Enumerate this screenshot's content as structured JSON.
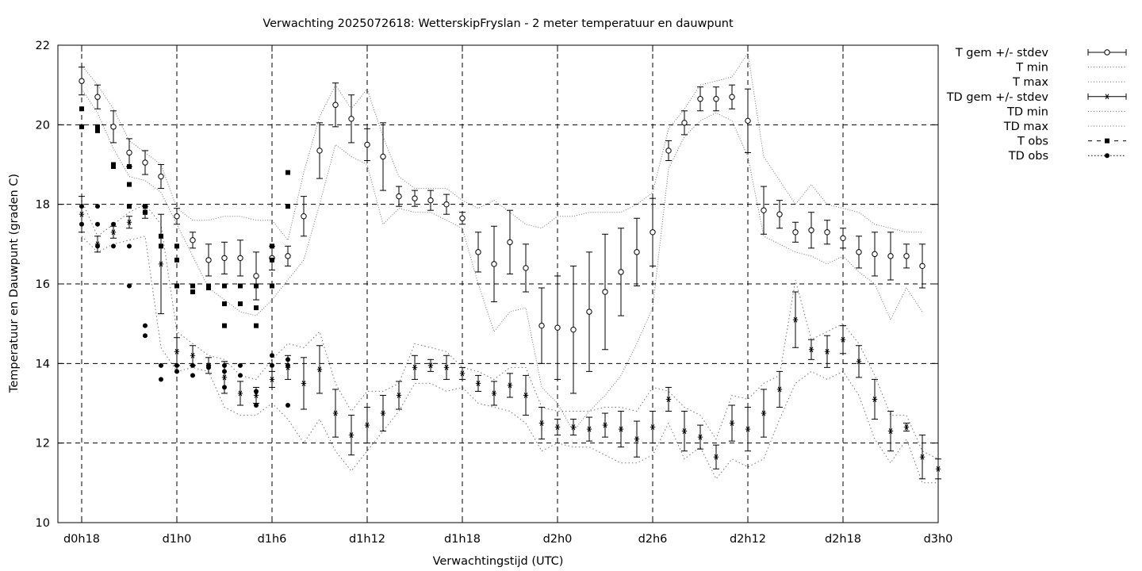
{
  "chart_data": {
    "type": "line",
    "title": "Verwachting 2025072618: WetterskipFryslan - 2 meter temperatuur en dauwpunt",
    "xlabel": "Verwachtingstijd (UTC)",
    "ylabel": "Temperatuur en Dauwpunt (graden C)",
    "ylim": [
      10,
      22
    ],
    "yticks": [
      10,
      12,
      14,
      16,
      18,
      20,
      22
    ],
    "xlim_hours": [
      -1.5,
      54
    ],
    "xticks": [
      {
        "h": 0,
        "label": "d0h18"
      },
      {
        "h": 6,
        "label": "d1h0"
      },
      {
        "h": 12,
        "label": "d1h6"
      },
      {
        "h": 18,
        "label": "d1h12"
      },
      {
        "h": 24,
        "label": "d1h18"
      },
      {
        "h": 30,
        "label": "d2h0"
      },
      {
        "h": 36,
        "label": "d2h6"
      },
      {
        "h": 42,
        "label": "d2h12"
      },
      {
        "h": 48,
        "label": "d2h18"
      },
      {
        "h": 54,
        "label": "d3h0"
      }
    ],
    "grid": true,
    "legend_position": "outside-right",
    "legend": [
      {
        "key": "t_mean",
        "label": "T gem +/- stdev"
      },
      {
        "key": "t_min",
        "label": "T min"
      },
      {
        "key": "t_max",
        "label": "T max"
      },
      {
        "key": "td_mean",
        "label": "TD gem +/- stdev"
      },
      {
        "key": "td_min",
        "label": "TD min"
      },
      {
        "key": "td_max",
        "label": "TD max"
      },
      {
        "key": "t_obs",
        "label": "T obs"
      },
      {
        "key": "td_obs",
        "label": "TD obs"
      }
    ],
    "t_mean": [
      [
        0,
        21.1,
        0.35
      ],
      [
        1,
        20.7,
        0.3
      ],
      [
        2,
        19.95,
        0.4
      ],
      [
        3,
        19.3,
        0.35
      ],
      [
        4,
        19.05,
        0.3
      ],
      [
        5,
        18.7,
        0.3
      ],
      [
        6,
        17.7,
        0.2
      ],
      [
        7,
        17.1,
        0.2
      ],
      [
        8,
        16.6,
        0.4
      ],
      [
        9,
        16.65,
        0.4
      ],
      [
        10,
        16.65,
        0.45
      ],
      [
        11,
        16.2,
        0.6
      ],
      [
        12,
        16.65,
        0.3
      ],
      [
        13,
        16.7,
        0.25
      ],
      [
        14,
        17.7,
        0.5
      ],
      [
        15,
        19.35,
        0.7
      ],
      [
        16,
        20.5,
        0.55
      ],
      [
        17,
        20.15,
        0.6
      ],
      [
        18,
        19.5,
        0.4
      ],
      [
        19,
        19.2,
        0.85
      ],
      [
        20,
        18.2,
        0.25
      ],
      [
        21,
        18.15,
        0.2
      ],
      [
        22,
        18.1,
        0.25
      ],
      [
        23,
        18.0,
        0.25
      ],
      [
        24,
        17.65,
        0.15
      ],
      [
        25,
        16.8,
        0.5
      ],
      [
        26,
        16.5,
        0.95
      ],
      [
        27,
        17.05,
        0.8
      ],
      [
        28,
        16.4,
        0.6
      ],
      [
        29,
        14.95,
        0.95
      ],
      [
        30,
        14.9,
        1.3
      ],
      [
        31,
        14.85,
        1.6
      ],
      [
        32,
        15.3,
        1.5
      ],
      [
        33,
        15.8,
        1.45
      ],
      [
        34,
        16.3,
        1.1
      ],
      [
        35,
        16.8,
        0.85
      ],
      [
        36,
        17.3,
        0.85
      ],
      [
        37,
        19.35,
        0.25
      ],
      [
        38,
        20.05,
        0.3
      ],
      [
        39,
        20.65,
        0.3
      ],
      [
        40,
        20.65,
        0.3
      ],
      [
        41,
        20.7,
        0.3
      ],
      [
        42,
        20.1,
        0.8
      ],
      [
        43,
        17.85,
        0.6
      ],
      [
        44,
        17.75,
        0.35
      ],
      [
        45,
        17.3,
        0.25
      ],
      [
        46,
        17.35,
        0.45
      ],
      [
        47,
        17.3,
        0.3
      ],
      [
        48,
        17.15,
        0.25
      ],
      [
        49,
        16.8,
        0.4
      ],
      [
        50,
        16.75,
        0.55
      ],
      [
        51,
        16.7,
        0.6
      ],
      [
        52,
        16.7,
        0.3
      ],
      [
        53,
        16.45,
        0.55
      ]
    ],
    "t_min": [
      [
        0,
        20.9
      ],
      [
        1,
        20.3
      ],
      [
        2,
        19.4
      ],
      [
        3,
        18.7
      ],
      [
        4,
        18.6
      ],
      [
        5,
        18.3
      ],
      [
        6,
        17.5
      ],
      [
        7,
        16.7
      ],
      [
        8,
        15.9
      ],
      [
        9,
        15.6
      ],
      [
        10,
        15.3
      ],
      [
        11,
        15.2
      ],
      [
        12,
        15.6
      ],
      [
        13,
        16.1
      ],
      [
        14,
        16.6
      ],
      [
        15,
        18.0
      ],
      [
        16,
        19.5
      ],
      [
        17,
        19.2
      ],
      [
        18,
        19.0
      ],
      [
        19,
        17.5
      ],
      [
        20,
        17.9
      ],
      [
        21,
        17.8
      ],
      [
        22,
        17.8
      ],
      [
        23,
        17.6
      ],
      [
        24,
        17.4
      ],
      [
        25,
        16.0
      ],
      [
        26,
        14.8
      ],
      [
        27,
        15.3
      ],
      [
        28,
        15.4
      ],
      [
        29,
        13.4
      ],
      [
        30,
        13.0
      ],
      [
        31,
        12.3
      ],
      [
        32,
        12.8
      ],
      [
        33,
        13.2
      ],
      [
        34,
        13.7
      ],
      [
        35,
        14.5
      ],
      [
        36,
        15.4
      ],
      [
        37,
        18.9
      ],
      [
        38,
        19.7
      ],
      [
        39,
        20.1
      ],
      [
        40,
        20.3
      ],
      [
        41,
        20.1
      ],
      [
        42,
        19.2
      ],
      [
        43,
        17.2
      ],
      [
        44,
        17.0
      ],
      [
        45,
        16.8
      ],
      [
        46,
        16.7
      ],
      [
        47,
        16.5
      ],
      [
        48,
        16.7
      ],
      [
        49,
        16.3
      ],
      [
        50,
        16.0
      ],
      [
        51,
        15.1
      ],
      [
        52,
        15.9
      ],
      [
        53,
        15.3
      ]
    ],
    "t_max": [
      [
        0,
        21.5
      ],
      [
        1,
        21.0
      ],
      [
        2,
        20.4
      ],
      [
        3,
        19.6
      ],
      [
        4,
        19.3
      ],
      [
        5,
        19.0
      ],
      [
        6,
        17.9
      ],
      [
        7,
        17.6
      ],
      [
        8,
        17.6
      ],
      [
        9,
        17.7
      ],
      [
        10,
        17.7
      ],
      [
        11,
        17.6
      ],
      [
        12,
        17.6
      ],
      [
        13,
        17.1
      ],
      [
        14,
        18.8
      ],
      [
        15,
        20.2
      ],
      [
        16,
        21.0
      ],
      [
        17,
        20.4
      ],
      [
        18,
        20.9
      ],
      [
        19,
        19.7
      ],
      [
        20,
        18.7
      ],
      [
        21,
        18.4
      ],
      [
        22,
        18.4
      ],
      [
        23,
        18.4
      ],
      [
        24,
        18.1
      ],
      [
        25,
        17.9
      ],
      [
        26,
        18.1
      ],
      [
        27,
        17.8
      ],
      [
        28,
        17.5
      ],
      [
        29,
        17.4
      ],
      [
        30,
        17.7
      ],
      [
        31,
        17.7
      ],
      [
        32,
        17.8
      ],
      [
        33,
        17.8
      ],
      [
        34,
        17.8
      ],
      [
        35,
        18.0
      ],
      [
        36,
        18.3
      ],
      [
        37,
        19.9
      ],
      [
        38,
        20.4
      ],
      [
        39,
        21.0
      ],
      [
        40,
        21.1
      ],
      [
        41,
        21.2
      ],
      [
        42,
        21.8
      ],
      [
        43,
        19.2
      ],
      [
        44,
        18.6
      ],
      [
        45,
        18.0
      ],
      [
        46,
        18.5
      ],
      [
        47,
        18.0
      ],
      [
        48,
        17.9
      ],
      [
        49,
        17.8
      ],
      [
        50,
        17.5
      ],
      [
        51,
        17.4
      ],
      [
        52,
        17.3
      ],
      [
        53,
        17.3
      ]
    ],
    "td_mean": [
      [
        0,
        17.75,
        0.45
      ],
      [
        1,
        17.0,
        0.2
      ],
      [
        2,
        17.3,
        0.15
      ],
      [
        3,
        17.55,
        0.15
      ],
      [
        4,
        17.8,
        0.15
      ],
      [
        5,
        16.5,
        1.25
      ],
      [
        6,
        14.3,
        0.35
      ],
      [
        7,
        14.2,
        0.25
      ],
      [
        8,
        13.95,
        0.2
      ],
      [
        9,
        13.65,
        0.4
      ],
      [
        10,
        13.25,
        0.3
      ],
      [
        11,
        13.2,
        0.2
      ],
      [
        12,
        13.6,
        0.2
      ],
      [
        13,
        13.9,
        0.3
      ],
      [
        14,
        13.5,
        0.65
      ],
      [
        15,
        13.85,
        0.6
      ],
      [
        16,
        12.75,
        0.6
      ],
      [
        17,
        12.2,
        0.5
      ],
      [
        18,
        12.45,
        0.45
      ],
      [
        19,
        12.75,
        0.45
      ],
      [
        20,
        13.2,
        0.35
      ],
      [
        21,
        13.9,
        0.3
      ],
      [
        22,
        13.95,
        0.15
      ],
      [
        23,
        13.9,
        0.3
      ],
      [
        24,
        13.75,
        0.15
      ],
      [
        25,
        13.5,
        0.2
      ],
      [
        26,
        13.25,
        0.3
      ],
      [
        27,
        13.45,
        0.3
      ],
      [
        28,
        13.2,
        0.5
      ],
      [
        29,
        12.5,
        0.4
      ],
      [
        30,
        12.4,
        0.2
      ],
      [
        31,
        12.4,
        0.2
      ],
      [
        32,
        12.35,
        0.3
      ],
      [
        33,
        12.45,
        0.3
      ],
      [
        34,
        12.35,
        0.45
      ],
      [
        35,
        12.1,
        0.45
      ],
      [
        36,
        12.4,
        0.4
      ],
      [
        37,
        13.1,
        0.3
      ],
      [
        38,
        12.3,
        0.5
      ],
      [
        39,
        12.15,
        0.3
      ],
      [
        40,
        11.65,
        0.3
      ],
      [
        41,
        12.5,
        0.45
      ],
      [
        42,
        12.35,
        0.55
      ],
      [
        43,
        12.75,
        0.6
      ],
      [
        44,
        13.35,
        0.45
      ],
      [
        45,
        15.1,
        0.7
      ],
      [
        46,
        14.35,
        0.25
      ],
      [
        47,
        14.3,
        0.4
      ],
      [
        48,
        14.6,
        0.35
      ],
      [
        49,
        14.05,
        0.4
      ],
      [
        50,
        13.1,
        0.5
      ],
      [
        51,
        12.3,
        0.5
      ],
      [
        52,
        12.4,
        0.1
      ],
      [
        53,
        11.65,
        0.55
      ],
      [
        54,
        11.35,
        0.25
      ]
    ],
    "td_min": [
      [
        0,
        17.2
      ],
      [
        1,
        16.8
      ],
      [
        2,
        17.0
      ],
      [
        3,
        17.1
      ],
      [
        4,
        17.2
      ],
      [
        5,
        14.4
      ],
      [
        6,
        13.8
      ],
      [
        7,
        13.9
      ],
      [
        8,
        13.8
      ],
      [
        9,
        12.9
      ],
      [
        10,
        12.7
      ],
      [
        11,
        12.7
      ],
      [
        12,
        13.0
      ],
      [
        13,
        12.6
      ],
      [
        14,
        12.0
      ],
      [
        15,
        12.6
      ],
      [
        16,
        11.8
      ],
      [
        17,
        11.3
      ],
      [
        18,
        11.8
      ],
      [
        19,
        12.3
      ],
      [
        20,
        12.8
      ],
      [
        21,
        13.5
      ],
      [
        22,
        13.5
      ],
      [
        23,
        13.3
      ],
      [
        24,
        13.4
      ],
      [
        25,
        13.0
      ],
      [
        26,
        12.9
      ],
      [
        27,
        12.8
      ],
      [
        28,
        12.5
      ],
      [
        29,
        11.8
      ],
      [
        30,
        12.0
      ],
      [
        31,
        11.9
      ],
      [
        32,
        11.9
      ],
      [
        33,
        11.7
      ],
      [
        34,
        11.5
      ],
      [
        35,
        11.5
      ],
      [
        36,
        11.7
      ],
      [
        37,
        12.5
      ],
      [
        38,
        11.6
      ],
      [
        39,
        11.9
      ],
      [
        40,
        11.1
      ],
      [
        41,
        11.6
      ],
      [
        42,
        11.4
      ],
      [
        43,
        11.6
      ],
      [
        44,
        12.6
      ],
      [
        45,
        13.5
      ],
      [
        46,
        13.8
      ],
      [
        47,
        13.6
      ],
      [
        48,
        13.8
      ],
      [
        49,
        13.2
      ],
      [
        50,
        12.1
      ],
      [
        51,
        11.5
      ],
      [
        52,
        12.1
      ],
      [
        53,
        11.0
      ],
      [
        54,
        11.0
      ]
    ],
    "td_max": [
      [
        0,
        18.1
      ],
      [
        1,
        17.2
      ],
      [
        2,
        17.5
      ],
      [
        3,
        17.8
      ],
      [
        4,
        18.0
      ],
      [
        5,
        17.5
      ],
      [
        6,
        14.8
      ],
      [
        7,
        14.5
      ],
      [
        8,
        14.2
      ],
      [
        9,
        14.1
      ],
      [
        10,
        13.7
      ],
      [
        11,
        13.6
      ],
      [
        12,
        14.1
      ],
      [
        13,
        14.5
      ],
      [
        14,
        14.4
      ],
      [
        15,
        14.8
      ],
      [
        16,
        13.5
      ],
      [
        17,
        12.8
      ],
      [
        18,
        13.3
      ],
      [
        19,
        13.3
      ],
      [
        20,
        13.5
      ],
      [
        21,
        14.5
      ],
      [
        22,
        14.4
      ],
      [
        23,
        14.3
      ],
      [
        24,
        13.9
      ],
      [
        25,
        13.8
      ],
      [
        26,
        13.6
      ],
      [
        27,
        13.9
      ],
      [
        28,
        13.9
      ],
      [
        29,
        12.9
      ],
      [
        30,
        12.8
      ],
      [
        31,
        12.8
      ],
      [
        32,
        12.8
      ],
      [
        33,
        12.9
      ],
      [
        34,
        12.9
      ],
      [
        35,
        12.8
      ],
      [
        36,
        13.4
      ],
      [
        37,
        13.3
      ],
      [
        38,
        12.9
      ],
      [
        39,
        12.7
      ],
      [
        40,
        12.1
      ],
      [
        41,
        13.2
      ],
      [
        42,
        13.1
      ],
      [
        43,
        13.5
      ],
      [
        44,
        13.7
      ],
      [
        45,
        16.1
      ],
      [
        46,
        14.6
      ],
      [
        47,
        14.8
      ],
      [
        48,
        15.0
      ],
      [
        49,
        14.5
      ],
      [
        50,
        13.7
      ],
      [
        51,
        12.7
      ],
      [
        52,
        12.7
      ],
      [
        53,
        11.8
      ],
      [
        54,
        11.6
      ]
    ],
    "t_obs": [
      [
        0,
        20.4
      ],
      [
        0,
        19.95
      ],
      [
        1,
        19.95
      ],
      [
        1,
        19.85
      ],
      [
        2,
        19.0
      ],
      [
        2,
        18.95
      ],
      [
        3,
        18.95
      ],
      [
        3,
        18.5
      ],
      [
        3,
        17.95
      ],
      [
        4,
        17.95
      ],
      [
        4,
        17.8
      ],
      [
        5,
        17.2
      ],
      [
        5,
        16.95
      ],
      [
        6,
        16.95
      ],
      [
        6,
        16.6
      ],
      [
        6,
        15.95
      ],
      [
        7,
        15.95
      ],
      [
        7,
        15.8
      ],
      [
        8,
        15.95
      ],
      [
        8,
        15.9
      ],
      [
        9,
        15.95
      ],
      [
        9,
        15.5
      ],
      [
        9,
        14.95
      ],
      [
        10,
        15.95
      ],
      [
        10,
        15.5
      ],
      [
        11,
        15.95
      ],
      [
        11,
        15.4
      ],
      [
        11,
        14.95
      ],
      [
        12,
        16.95
      ],
      [
        12,
        16.6
      ],
      [
        12,
        15.95
      ],
      [
        13,
        18.8
      ],
      [
        13,
        17.95
      ]
    ],
    "td_obs": [
      [
        0,
        17.95
      ],
      [
        0,
        17.5
      ],
      [
        1,
        17.95
      ],
      [
        1,
        17.5
      ],
      [
        1,
        16.95
      ],
      [
        2,
        17.5
      ],
      [
        2,
        16.95
      ],
      [
        3,
        16.95
      ],
      [
        3,
        15.95
      ],
      [
        4,
        14.95
      ],
      [
        4,
        14.7
      ],
      [
        5,
        13.95
      ],
      [
        5,
        13.6
      ],
      [
        6,
        13.95
      ],
      [
        6,
        13.8
      ],
      [
        7,
        13.95
      ],
      [
        7,
        13.7
      ],
      [
        8,
        13.95
      ],
      [
        8,
        13.9
      ],
      [
        9,
        13.95
      ],
      [
        9,
        13.8
      ],
      [
        9,
        13.4
      ],
      [
        10,
        13.95
      ],
      [
        10,
        13.7
      ],
      [
        11,
        13.3
      ],
      [
        11,
        12.95
      ],
      [
        12,
        14.2
      ],
      [
        12,
        13.95
      ],
      [
        13,
        14.1
      ],
      [
        13,
        13.95
      ],
      [
        13,
        12.95
      ]
    ]
  }
}
